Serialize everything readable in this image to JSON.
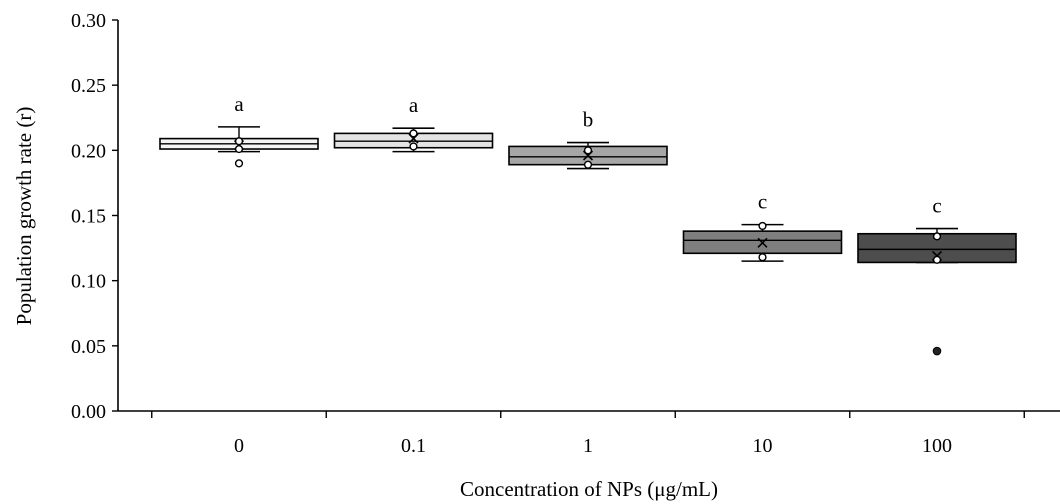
{
  "chart_data": {
    "type": "box",
    "xlabel": "Concentration of NPs (μg/mL)",
    "ylabel": "Population growth rate (r)",
    "ylim": [
      0,
      0.3
    ],
    "yticks": [
      "0.00",
      "0.05",
      "0.10",
      "0.15",
      "0.20",
      "0.25",
      "0.30"
    ],
    "grid": false,
    "categories": [
      "0",
      "0.1",
      "1",
      "10",
      "100"
    ],
    "boxes": [
      {
        "category": "0",
        "whisker_low": 0.199,
        "q1": 0.201,
        "median": 0.205,
        "q3": 0.209,
        "whisker_high": 0.218,
        "mean": 0.204,
        "points": [
          0.19,
          0.201,
          0.207
        ],
        "outliers": [],
        "label": "a",
        "color": "#f4f4f4"
      },
      {
        "category": "0.1",
        "whisker_low": 0.199,
        "q1": 0.202,
        "median": 0.207,
        "q3": 0.213,
        "whisker_high": 0.217,
        "mean": 0.209,
        "points": [
          0.203,
          0.213
        ],
        "outliers": [],
        "label": "a",
        "color": "#e4e4e4"
      },
      {
        "category": "1",
        "whisker_low": 0.186,
        "q1": 0.189,
        "median": 0.195,
        "q3": 0.203,
        "whisker_high": 0.206,
        "mean": 0.196,
        "points": [
          0.189,
          0.2
        ],
        "outliers": [],
        "label": "b",
        "color": "#a6a6a6"
      },
      {
        "category": "10",
        "whisker_low": 0.115,
        "q1": 0.121,
        "median": 0.131,
        "q3": 0.138,
        "whisker_high": 0.143,
        "mean": 0.129,
        "points": [
          0.118,
          0.142
        ],
        "outliers": [],
        "label": "c",
        "color": "#7f7f7f"
      },
      {
        "category": "100",
        "whisker_low": 0.114,
        "q1": 0.114,
        "median": 0.124,
        "q3": 0.136,
        "whisker_high": 0.14,
        "mean": 0.119,
        "points": [
          0.116,
          0.134
        ],
        "outliers": [
          0.046
        ],
        "label": "c",
        "color": "#4d4d4d"
      }
    ]
  }
}
